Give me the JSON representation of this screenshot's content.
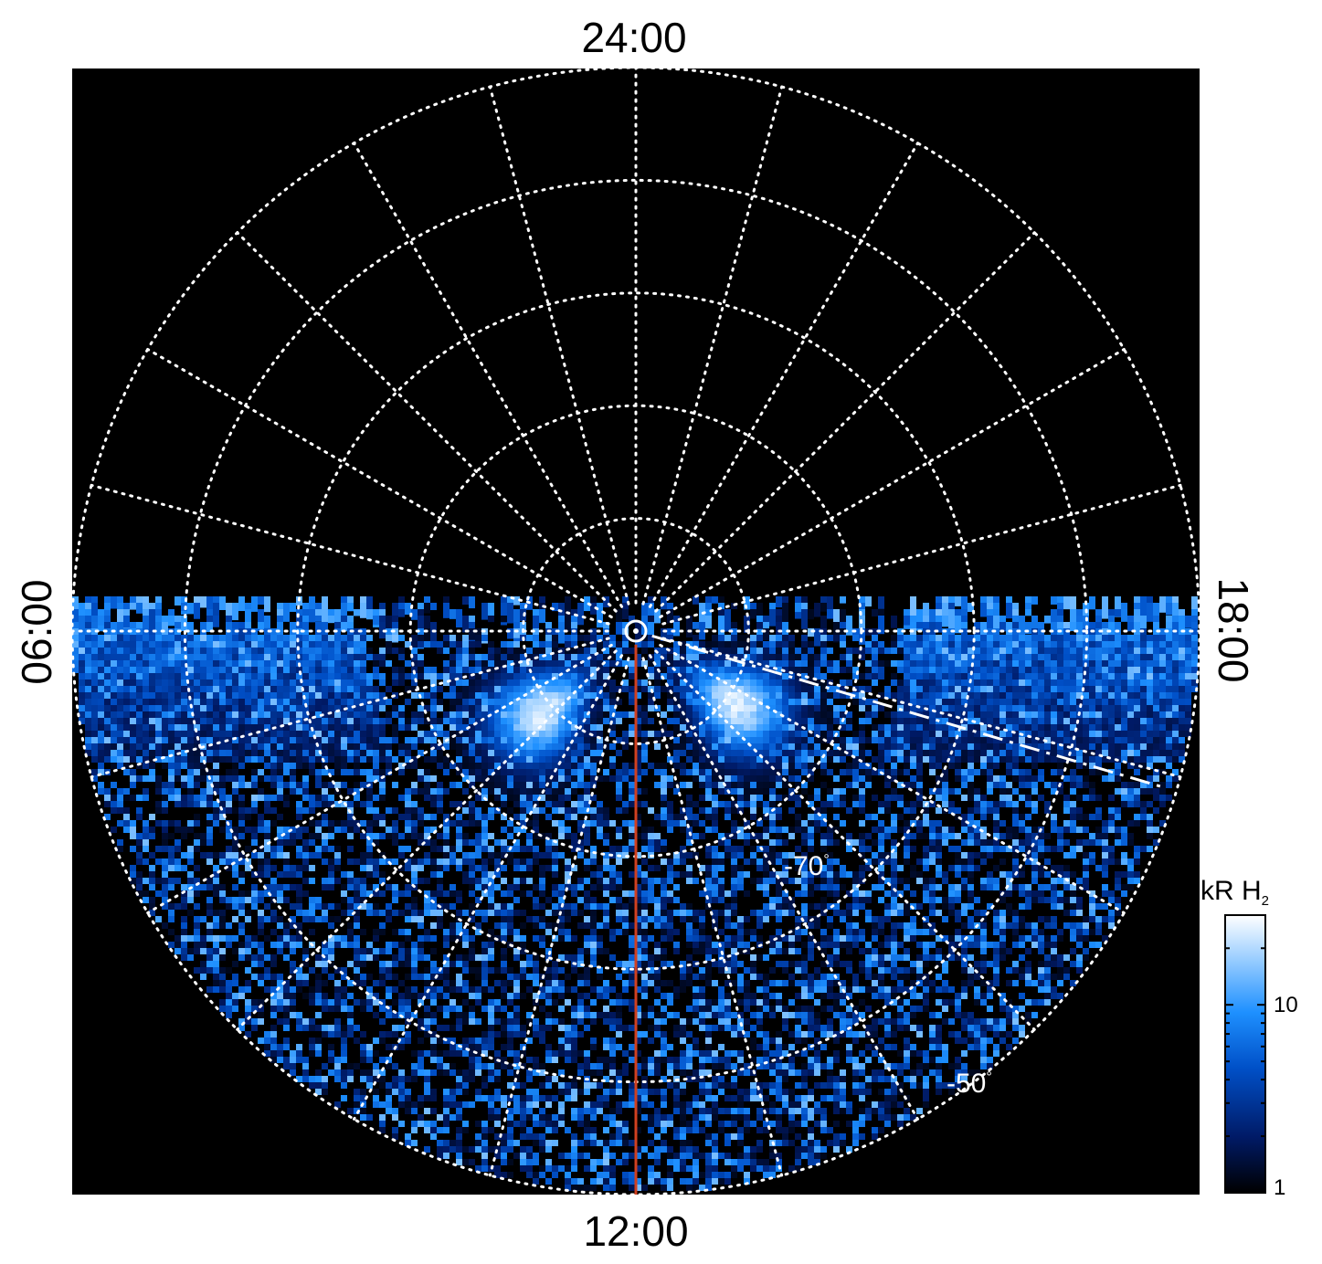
{
  "chart_data": {
    "type": "heatmap",
    "projection": "polar (south pole, planetocentric latitude vs local time)",
    "local_time_labels": {
      "top": "24:00",
      "bottom": "12:00",
      "left": "06:00",
      "right": "18:00"
    },
    "latitude_labels": [
      {
        "text": "-70",
        "unit": "°"
      },
      {
        "text": "-50",
        "unit": "°"
      }
    ],
    "grid": {
      "latitude_circles_deg": [
        -80,
        -70,
        -60,
        -50,
        -40
      ],
      "meridian_spacing_hours": 1,
      "style": "dotted white"
    },
    "colorbar": {
      "title": "kR H",
      "title_subscript": "2",
      "scale": "log",
      "range": [
        1,
        30
      ],
      "ticks": [
        {
          "value": 1,
          "label": "1"
        },
        {
          "value": 10,
          "label": "10"
        }
      ],
      "colors": [
        "#000000",
        "#001a66",
        "#0050c8",
        "#1e90ff",
        "#9fd0ff",
        "#ffffff"
      ]
    },
    "annotations": [
      {
        "type": "meridian line",
        "color": "#d04020",
        "local_time": "12:00"
      },
      {
        "type": "dash-dot line",
        "color": "#ffffff",
        "local_time_hours": 16.9
      },
      {
        "type": "pole marker",
        "shape": "circle with dot"
      }
    ],
    "bright_regions": [
      {
        "local_time_hours": 8.7,
        "latitude_range_deg": [
          -86,
          -72
        ],
        "intensity_kR": 30
      },
      {
        "local_time_hours": 15.6,
        "latitude_range_deg": [
          -86,
          -72
        ],
        "intensity_kR": 30
      }
    ],
    "observed_local_time_range_hours": [
      6,
      18
    ]
  }
}
